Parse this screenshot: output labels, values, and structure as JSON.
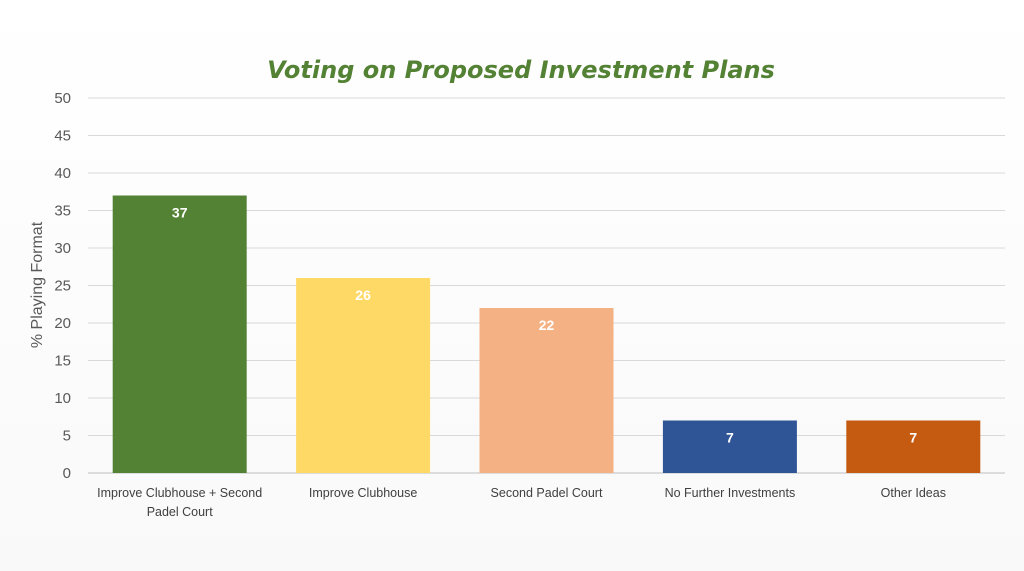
{
  "chart_data": {
    "type": "bar",
    "title": "Voting on Proposed Investment Plans",
    "xlabel": "",
    "ylabel": "% Playing Format",
    "ylim": [
      0,
      50
    ],
    "ytick_step": 5,
    "grid": true,
    "legend": "none",
    "categories": [
      "Improve Clubhouse + Second Padel Court",
      "Improve Clubhouse",
      "Second Padel Court",
      "No Further Investments",
      "Other Ideas"
    ],
    "category_lines": [
      [
        "Improve Clubhouse + Second",
        "Padel Court"
      ],
      [
        "Improve Clubhouse"
      ],
      [
        "Second Padel Court"
      ],
      [
        "No Further Investments"
      ],
      [
        "Other Ideas"
      ]
    ],
    "values": [
      37,
      26,
      22,
      7,
      7
    ],
    "colors": [
      "#548235",
      "#FFD966",
      "#F4B183",
      "#2F5597",
      "#C55A11"
    ]
  }
}
